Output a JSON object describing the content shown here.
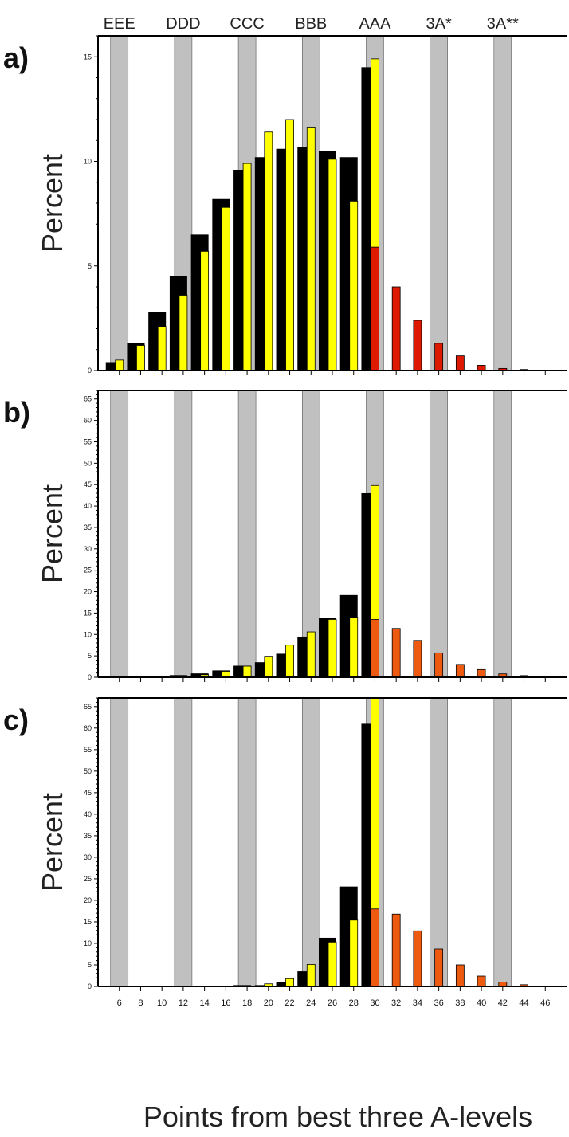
{
  "grade_labels": [
    {
      "x": 6,
      "text": "EEE"
    },
    {
      "x": 12,
      "text": "DDD"
    },
    {
      "x": 18,
      "text": "CCC"
    },
    {
      "x": 24,
      "text": "BBB"
    },
    {
      "x": 30,
      "text": "AAA"
    },
    {
      "x": 36,
      "text": "3A*"
    },
    {
      "x": 42,
      "text": "3A**"
    }
  ],
  "xlabel": "Points from best three A-levels",
  "colors": {
    "black": "#000000",
    "yellow": "#ffff00",
    "red": "#dd1a00",
    "orange": "#ee5a10",
    "gray": "#c0c0c0"
  },
  "chart_data": [
    {
      "type": "bar",
      "panel_label": "a)",
      "ylabel": "Percent",
      "xlim": [
        4,
        48
      ],
      "ylim": [
        0,
        16
      ],
      "yticks": [
        0,
        5,
        10,
        15
      ],
      "xticks": [
        6,
        8,
        10,
        12,
        14,
        16,
        18,
        20,
        22,
        24,
        26,
        28,
        30,
        32,
        34,
        36,
        38,
        40,
        42,
        44,
        46
      ],
      "gray_bands": [
        6,
        12,
        18,
        24,
        30,
        36,
        42
      ],
      "x": [
        6,
        8,
        10,
        12,
        14,
        16,
        18,
        20,
        22,
        24,
        26,
        28,
        30,
        32,
        34,
        36,
        38,
        40,
        42,
        44,
        46
      ],
      "series": [
        {
          "color": "black",
          "values": [
            0.4,
            1.3,
            2.8,
            4.5,
            6.5,
            8.2,
            9.6,
            10.2,
            10.6,
            10.7,
            10.5,
            10.2,
            14.5,
            0,
            0,
            0,
            0,
            0,
            0,
            0,
            0
          ]
        },
        {
          "color": "yellow",
          "values": [
            0.5,
            1.2,
            2.1,
            3.6,
            5.7,
            7.8,
            9.9,
            11.4,
            12.0,
            11.6,
            10.1,
            8.1,
            14.9,
            0,
            0,
            0,
            0,
            0,
            0,
            0,
            0
          ]
        },
        {
          "color": "red",
          "values": [
            0,
            0,
            0,
            0,
            0,
            0,
            0,
            0,
            0,
            0,
            0,
            0,
            5.9,
            4.0,
            2.4,
            1.3,
            0.7,
            0.25,
            0.1,
            0.05,
            0
          ]
        }
      ]
    },
    {
      "type": "bar",
      "panel_label": "b)",
      "ylabel": "Percent",
      "xlim": [
        4,
        48
      ],
      "ylim": [
        0,
        67
      ],
      "yticks": [
        0,
        5,
        10,
        15,
        20,
        25,
        30,
        35,
        40,
        45,
        50,
        55,
        60,
        65
      ],
      "xticks": [
        6,
        8,
        10,
        12,
        14,
        16,
        18,
        20,
        22,
        24,
        26,
        28,
        30,
        32,
        34,
        36,
        38,
        40,
        42,
        44,
        46
      ],
      "gray_bands": [
        6,
        12,
        18,
        24,
        30,
        36,
        42
      ],
      "x": [
        6,
        8,
        10,
        12,
        14,
        16,
        18,
        20,
        22,
        24,
        26,
        28,
        30,
        32,
        34,
        36,
        38,
        40,
        42,
        44,
        46
      ],
      "series": [
        {
          "color": "black",
          "values": [
            0,
            0.1,
            0.2,
            0.5,
            0.9,
            1.6,
            2.7,
            3.5,
            5.5,
            9.5,
            13.8,
            19.2,
            43.0,
            0,
            0,
            0,
            0,
            0,
            0,
            0,
            0
          ]
        },
        {
          "color": "yellow",
          "values": [
            0,
            0,
            0,
            0.2,
            0.6,
            1.4,
            2.6,
            4.9,
            7.5,
            10.6,
            13.5,
            14.0,
            44.8,
            0,
            0,
            0,
            0,
            0,
            0,
            0,
            0
          ]
        },
        {
          "color": "orange",
          "values": [
            0,
            0,
            0,
            0,
            0,
            0,
            0,
            0,
            0,
            0,
            0,
            0,
            13.5,
            11.4,
            8.6,
            5.7,
            3.0,
            1.8,
            0.8,
            0.4,
            0.3
          ]
        }
      ]
    },
    {
      "type": "bar",
      "panel_label": "c)",
      "ylabel": "Percent",
      "xlim": [
        4,
        48
      ],
      "ylim": [
        0,
        67
      ],
      "yticks": [
        0,
        5,
        10,
        15,
        20,
        25,
        30,
        35,
        40,
        45,
        50,
        55,
        60,
        65
      ],
      "xticks": [
        6,
        8,
        10,
        12,
        14,
        16,
        18,
        20,
        22,
        24,
        26,
        28,
        30,
        32,
        34,
        36,
        38,
        40,
        42,
        44,
        46
      ],
      "gray_bands": [
        6,
        12,
        18,
        24,
        30,
        36,
        42
      ],
      "x": [
        6,
        8,
        10,
        12,
        14,
        16,
        18,
        20,
        22,
        24,
        26,
        28,
        30,
        32,
        34,
        36,
        38,
        40,
        42,
        44,
        46
      ],
      "series": [
        {
          "color": "black",
          "values": [
            0,
            0,
            0,
            0,
            0,
            0,
            0.3,
            0.3,
            1.0,
            3.5,
            11.3,
            23.2,
            61.0,
            0,
            0,
            0,
            0,
            0,
            0,
            0,
            0
          ]
        },
        {
          "color": "yellow",
          "values": [
            0,
            0,
            0,
            0,
            0,
            0,
            0,
            0.6,
            1.8,
            5.1,
            10.3,
            15.4,
            67.0,
            0,
            0,
            0,
            0,
            0,
            0,
            0,
            0
          ]
        },
        {
          "color": "orange",
          "values": [
            0,
            0,
            0,
            0,
            0,
            0,
            0,
            0,
            0,
            0,
            0,
            0,
            18.0,
            16.8,
            12.9,
            8.7,
            5.0,
            2.4,
            1.0,
            0.4,
            0
          ]
        }
      ]
    }
  ]
}
